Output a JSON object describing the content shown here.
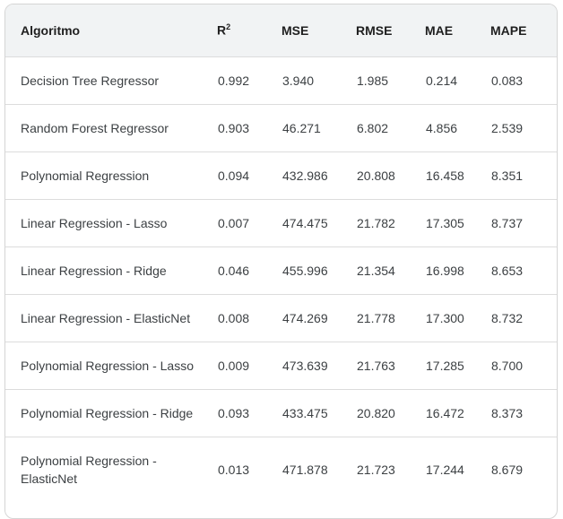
{
  "table": {
    "headers": {
      "algorithm": "Algoritmo",
      "r2": "R",
      "r2_sup": "2",
      "mse": "MSE",
      "rmse": "RMSE",
      "mae": "MAE",
      "mape": "MAPE"
    },
    "rows": [
      {
        "algorithm": "Decision Tree Regressor",
        "r2": "0.992",
        "mse": "3.940",
        "rmse": "1.985",
        "mae": "0.214",
        "mape": "0.083"
      },
      {
        "algorithm": "Random Forest Regressor",
        "r2": "0.903",
        "mse": "46.271",
        "rmse": "6.802",
        "mae": "4.856",
        "mape": "2.539"
      },
      {
        "algorithm": "Polynomial Regression",
        "r2": "0.094",
        "mse": "432.986",
        "rmse": "20.808",
        "mae": "16.458",
        "mape": "8.351"
      },
      {
        "algorithm": "Linear Regression - Lasso",
        "r2": "0.007",
        "mse": "474.475",
        "rmse": "21.782",
        "mae": "17.305",
        "mape": "8.737"
      },
      {
        "algorithm": "Linear Regression - Ridge",
        "r2": "0.046",
        "mse": "455.996",
        "rmse": "21.354",
        "mae": "16.998",
        "mape": "8.653"
      },
      {
        "algorithm": "Linear Regression - ElasticNet",
        "r2": "0.008",
        "mse": "474.269",
        "rmse": "21.778",
        "mae": "17.300",
        "mape": "8.732"
      },
      {
        "algorithm": "Polynomial Regression - Lasso",
        "r2": "0.009",
        "mse": "473.639",
        "rmse": "21.763",
        "mae": "17.285",
        "mape": "8.700"
      },
      {
        "algorithm": "Polynomial Regression - Ridge",
        "r2": "0.093",
        "mse": "433.475",
        "rmse": "20.820",
        "mae": "16.472",
        "mape": "8.373"
      },
      {
        "algorithm_line1": "Polynomial Regression -",
        "algorithm_line2": "ElasticNet",
        "r2": "0.013",
        "mse": "471.878",
        "rmse": "21.723",
        "mae": "17.244",
        "mape": "8.679"
      }
    ]
  }
}
